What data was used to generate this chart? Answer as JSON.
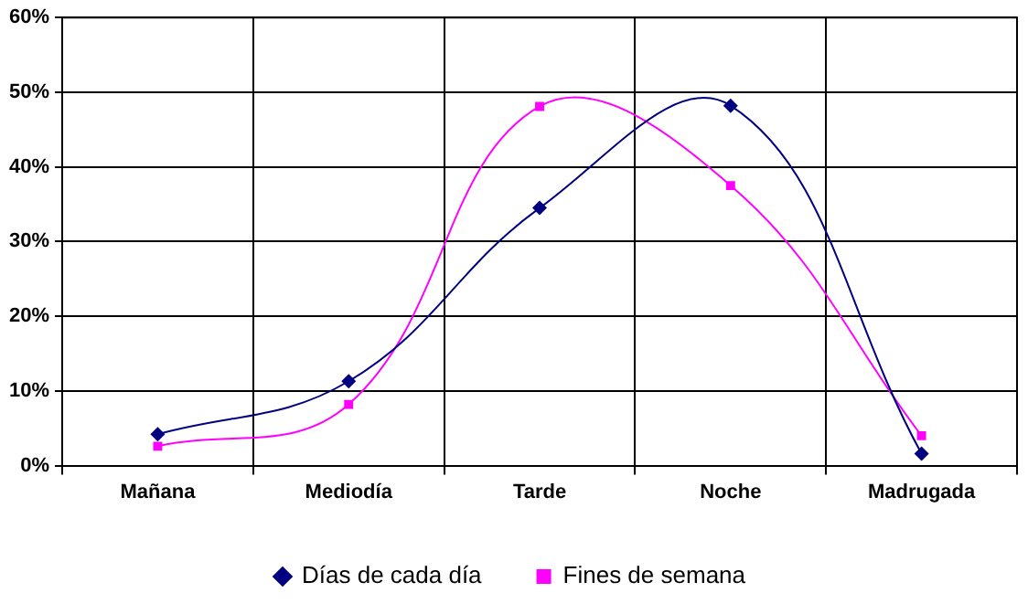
{
  "chart_data": {
    "type": "line",
    "categories": [
      "Mañana",
      "Mediodía",
      "Tarde",
      "Noche",
      "Madrugada"
    ],
    "series": [
      {
        "name": "Días de cada día",
        "color": "#000080",
        "marker": "diamond",
        "values": [
          4.2,
          11.3,
          34.5,
          48.2,
          1.6
        ]
      },
      {
        "name": "Fines de semana",
        "color": "#ff00ff",
        "marker": "square",
        "values": [
          2.6,
          8.2,
          48.1,
          37.5,
          4.0
        ]
      }
    ],
    "ylim": [
      0,
      60
    ],
    "yticks": [
      {
        "value": 0,
        "label": "0%"
      },
      {
        "value": 10,
        "label": "10%"
      },
      {
        "value": 20,
        "label": "20%"
      },
      {
        "value": 30,
        "label": "30%"
      },
      {
        "value": 40,
        "label": "40%"
      },
      {
        "value": 50,
        "label": "50%"
      },
      {
        "value": 60,
        "label": "60%"
      }
    ],
    "grid": true,
    "legend": "bottom"
  }
}
